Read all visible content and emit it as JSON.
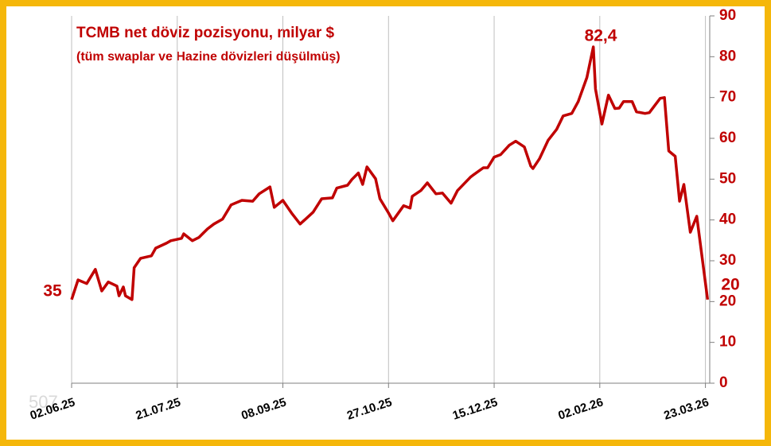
{
  "chart_data": {
    "type": "line",
    "title": "TCMB net döviz pozisyonu, milyar $",
    "subtitle": "(tüm swaplar ve Hazine dövizleri düşülmüş)",
    "annotations": [
      "35",
      "82,4",
      "20"
    ],
    "watermark": "507",
    "x": [
      "2025-06-02",
      "2025-06-05",
      "2025-06-09",
      "2025-06-13",
      "2025-06-16",
      "2025-06-19",
      "2025-06-23",
      "2025-06-24",
      "2025-06-26",
      "2025-06-27",
      "2025-06-30",
      "2025-07-01",
      "2025-07-04",
      "2025-07-09",
      "2025-07-11",
      "2025-07-16",
      "2025-07-18",
      "2025-07-23",
      "2025-07-24",
      "2025-07-28",
      "2025-07-31",
      "2025-08-04",
      "2025-08-07",
      "2025-08-11",
      "2025-08-15",
      "2025-08-20",
      "2025-08-25",
      "2025-08-28",
      "2025-09-02",
      "2025-09-04",
      "2025-09-08",
      "2025-09-12",
      "2025-09-16",
      "2025-09-22",
      "2025-09-26",
      "2025-10-01",
      "2025-10-03",
      "2025-10-08",
      "2025-10-10",
      "2025-10-13",
      "2025-10-15",
      "2025-10-17",
      "2025-10-21",
      "2025-10-23",
      "2025-10-27",
      "2025-10-29",
      "2025-11-03",
      "2025-11-06",
      "2025-11-07",
      "2025-11-11",
      "2025-11-14",
      "2025-11-18",
      "2025-11-21",
      "2025-11-25",
      "2025-11-28",
      "2025-12-04",
      "2025-12-05",
      "2025-12-10",
      "2025-12-12",
      "2025-12-15",
      "2025-12-18",
      "2025-12-22",
      "2025-12-25",
      "2025-12-29",
      "2026-01-01",
      "2026-01-02",
      "2026-01-05",
      "2026-01-09",
      "2026-01-13",
      "2026-01-16",
      "2026-01-20",
      "2026-01-23",
      "2026-01-27",
      "2026-01-30",
      "2026-01-31",
      "2026-02-03",
      "2026-02-06",
      "2026-02-09",
      "2026-02-11",
      "2026-02-13",
      "2026-02-17",
      "2026-02-19",
      "2026-02-23",
      "2026-02-25",
      "2026-03-02",
      "2026-03-04",
      "2026-03-06",
      "2026-03-09",
      "2026-03-11",
      "2026-03-13",
      "2026-03-16",
      "2026-03-19",
      "2026-03-24"
    ],
    "series": [
      {
        "name": "TCMB net döviz pozisyonu",
        "color": "#c00000",
        "values": [
          20.5,
          25.3,
          24.4,
          27.9,
          22.6,
          24.8,
          23.8,
          21.4,
          23.6,
          21.4,
          20.5,
          28.3,
          30.6,
          31.2,
          33.1,
          34.3,
          34.9,
          35.5,
          36.6,
          34.9,
          35.7,
          37.8,
          39.0,
          40.2,
          43.7,
          44.8,
          44.6,
          46.4,
          48.1,
          43.1,
          44.8,
          41.7,
          39.0,
          41.9,
          45.2,
          45.4,
          47.8,
          48.5,
          49.9,
          51.5,
          48.7,
          53.0,
          50.1,
          45.2,
          41.7,
          39.8,
          43.5,
          42.9,
          45.8,
          47.2,
          49.1,
          46.4,
          46.6,
          44.1,
          47.2,
          50.5,
          50.9,
          52.8,
          52.8,
          55.4,
          56.0,
          58.3,
          59.3,
          57.9,
          53.2,
          52.6,
          55.0,
          59.5,
          62.2,
          65.5,
          66.1,
          69.0,
          74.9,
          82.4,
          72.1,
          63.5,
          70.6,
          67.3,
          67.4,
          69.0,
          69.0,
          66.5,
          66.1,
          66.3,
          69.8,
          70.0,
          56.9,
          55.6,
          44.6,
          48.7,
          37.0,
          40.9,
          20.5
        ]
      }
    ],
    "xlim": [
      "2025-06-02",
      "2026-03-25"
    ],
    "xticks": [
      {
        "value": "2025-06-02",
        "label": "02.06.25"
      },
      {
        "value": "2025-07-21",
        "label": "21.07.25"
      },
      {
        "value": "2025-09-08",
        "label": "08.09.25"
      },
      {
        "value": "2025-10-27",
        "label": "27.10.25"
      },
      {
        "value": "2025-12-15",
        "label": "15.12.25"
      },
      {
        "value": "2026-02-02",
        "label": "02.02.26"
      },
      {
        "value": "2026-03-23",
        "label": "23.03.26"
      }
    ],
    "ylim": [
      0,
      90
    ],
    "yticks": [
      0,
      10,
      20,
      30,
      40,
      50,
      60,
      70,
      80,
      90
    ],
    "y_axis_side": "right",
    "grid": "x"
  }
}
